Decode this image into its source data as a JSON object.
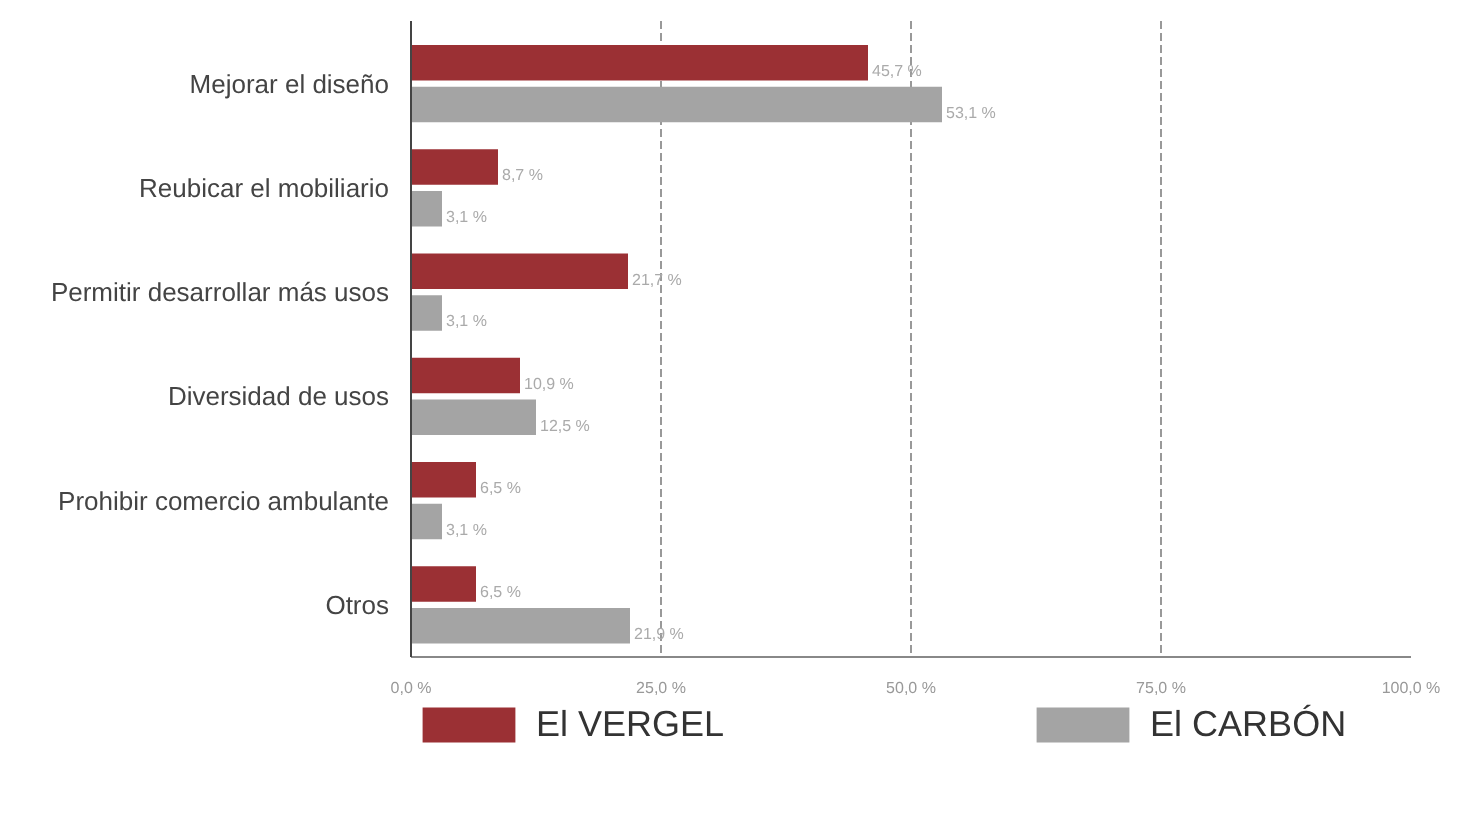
{
  "chart_data": {
    "type": "bar",
    "orientation": "horizontal",
    "categories": [
      "Mejorar el diseño",
      "Reubicar el mobiliario",
      "Permitir desarrollar más usos",
      "Diversidad de usos",
      "Prohibir comercio ambulante",
      "Otros"
    ],
    "series": [
      {
        "name": "El VERGEL",
        "color": "#9b3034",
        "values": [
          45.7,
          8.7,
          21.7,
          10.9,
          6.5,
          6.5
        ],
        "value_labels": [
          "45,7 %",
          "8,7 %",
          "21,7 %",
          "10,9 %",
          "6,5 %",
          "6,5 %"
        ]
      },
      {
        "name": "El CARBÓN",
        "color": "#a4a4a4",
        "values": [
          53.1,
          3.1,
          3.1,
          12.5,
          3.1,
          21.9
        ],
        "value_labels": [
          "53,1 %",
          "3,1 %",
          "3,1 %",
          "12,5 %",
          "3,1 %",
          "21,9 %"
        ]
      }
    ],
    "xlim": [
      0,
      100
    ],
    "xticks": [
      {
        "value": 0,
        "label": "0,0 %"
      },
      {
        "value": 25,
        "label": "25,0 %"
      },
      {
        "value": 50,
        "label": "50,0 %"
      },
      {
        "value": 75,
        "label": "75,0 %"
      },
      {
        "value": 100,
        "label": "100,0 %"
      }
    ],
    "grid": "x",
    "legend": "bottom"
  }
}
